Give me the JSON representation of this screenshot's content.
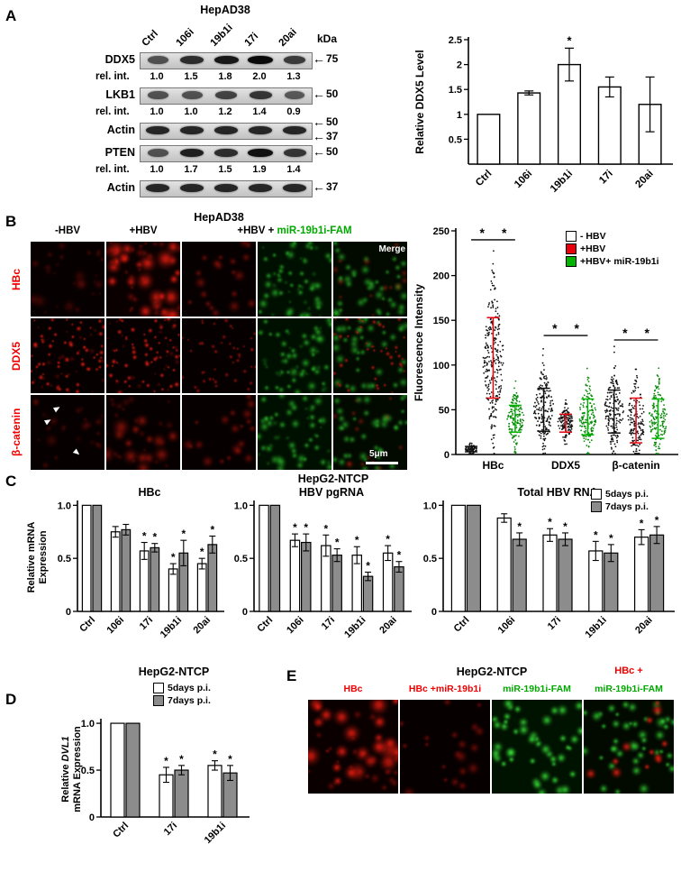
{
  "colors": {
    "red_text": "#f10000",
    "green_text": "#00a800",
    "chart_red": "#e8000b",
    "chart_green": "#00b400",
    "bar_gray": "#8c8c8c"
  },
  "panels": {
    "A": {
      "label": "A",
      "title": "HepAD38",
      "kda": "kDa",
      "lanes": [
        "Ctrl",
        "106i",
        "19b1i",
        "17i",
        "20ai"
      ],
      "rel_int_label": "rel. int.",
      "blots": [
        {
          "protein": "DDX5",
          "markers": [
            "75"
          ],
          "rel_int": [
            "1.0",
            "1.5",
            "1.8",
            "2.0",
            "1.3"
          ],
          "intensities": [
            1.0,
            1.5,
            1.8,
            2.0,
            1.3
          ]
        },
        {
          "protein": "LKB1",
          "markers": [
            "50"
          ],
          "rel_int": [
            "1.0",
            "1.0",
            "1.2",
            "1.4",
            "0.9"
          ],
          "intensities": [
            1.0,
            1.0,
            1.2,
            1.4,
            0.9
          ]
        },
        {
          "protein": "Actin",
          "markers": [
            "50",
            "37"
          ],
          "intensities": [
            1.6,
            1.6,
            1.6,
            1.6,
            1.6
          ]
        },
        {
          "protein": "PTEN",
          "markers": [
            "50"
          ],
          "rel_int": [
            "1.0",
            "1.7",
            "1.5",
            "1.9",
            "1.4"
          ],
          "intensities": [
            1.0,
            1.7,
            1.5,
            1.9,
            1.4
          ]
        },
        {
          "protein": "Actin",
          "markers": [
            "37"
          ],
          "intensities": [
            1.6,
            1.6,
            1.6,
            1.6,
            1.6
          ]
        }
      ]
    },
    "B": {
      "label": "B",
      "title": "HepAD38",
      "col_header_1": "-HBV",
      "col_header_2": "+HBV",
      "col_header_3_black": "+HBV + ",
      "col_header_3_green": "miR-19b1i-FAM",
      "row_labels": [
        "HBc",
        "DDX5",
        "β-catenin"
      ],
      "merge_label": "Merge",
      "scale_label": "5μm",
      "cells": [
        {
          "name": "hbc-minus-hbv",
          "preset": "red-faint",
          "seed": 11
        },
        {
          "name": "hbc-plus-hbv",
          "preset": "red-bright",
          "seed": 12
        },
        {
          "name": "hbc-mir-red",
          "preset": "red-dim",
          "seed": 13
        },
        {
          "name": "hbc-mir-fam",
          "preset": "green",
          "seed": 14
        },
        {
          "name": "hbc-mir-merge",
          "preset": "merge-dim",
          "seed": 15
        },
        {
          "name": "ddx5-minus-hbv",
          "preset": "red-dots",
          "seed": 21
        },
        {
          "name": "ddx5-plus-hbv",
          "preset": "red-dots",
          "seed": 22
        },
        {
          "name": "ddx5-mir-red",
          "preset": "red-dots-dim",
          "seed": 23
        },
        {
          "name": "ddx5-mir-fam",
          "preset": "green",
          "seed": 24
        },
        {
          "name": "ddx5-mir-merge",
          "preset": "merge-dots",
          "seed": 25
        },
        {
          "name": "bcatenin-minus-hbv",
          "preset": "red-faint",
          "seed": 31
        },
        {
          "name": "bcatenin-plus-hbv",
          "preset": "red-patch",
          "seed": 32
        },
        {
          "name": "bcatenin-mir-red",
          "preset": "red-dim",
          "seed": 33
        },
        {
          "name": "bcatenin-mir-fam",
          "preset": "green",
          "seed": 34
        },
        {
          "name": "bcatenin-mir-merge",
          "preset": "merge-dim",
          "seed": 35
        }
      ]
    },
    "C": {
      "label": "C",
      "title": "HepG2-NTCP"
    },
    "D": {
      "label": "D",
      "title": "HepG2-NTCP"
    },
    "E": {
      "label": "E",
      "title": "HepG2-NTCP",
      "header_extra": "HBc +",
      "col_labels": [
        "HBc",
        "HBc +miR-19b1i",
        "miR-19b1i-FAM",
        "miR-19b1i-FAM"
      ],
      "cells": [
        {
          "name": "hbc",
          "preset": "red-bright",
          "seed": 41
        },
        {
          "name": "hbc-mir19b1",
          "preset": "red-dim",
          "seed": 42
        },
        {
          "name": "mir-19b1i-fam",
          "preset": "green-bright",
          "seed": 43
        },
        {
          "name": "hbc-mir-fam-merge",
          "preset": "merge-bright",
          "seed": 44
        }
      ]
    }
  },
  "chart_data": [
    {
      "id": "panelA_ddx5_level",
      "type": "bar",
      "ylabel": "Relative DDX5 Level",
      "categories": [
        "Ctrl",
        "106i",
        "19b1i",
        "17i",
        "20ai"
      ],
      "values": [
        1.0,
        1.43,
        2.0,
        1.55,
        1.2
      ],
      "errors": [
        0,
        0.04,
        0.33,
        0.2,
        0.55
      ],
      "sig": [
        "",
        "",
        "*",
        "",
        ""
      ],
      "ylim": [
        0,
        2.5
      ],
      "yticks": [
        0.5,
        1,
        1.5,
        2,
        2.5
      ],
      "ytick_labels": [
        "0.5",
        "1",
        "1.5",
        "2",
        "2.5"
      ],
      "bar_fill": "#ffffff"
    },
    {
      "id": "panelB_fluorescence",
      "type": "scatter",
      "ylabel": "Fluorescence Intensity",
      "ylim": [
        0,
        250
      ],
      "yticks": [
        0,
        50,
        100,
        150,
        200,
        250
      ],
      "ytick_labels": [
        "0",
        "50",
        "100",
        "150",
        "200",
        "250"
      ],
      "groups": [
        "HBc",
        "DDX5",
        "β-catenin"
      ],
      "legend": [
        {
          "label": "- HBV",
          "color": "#ffffff"
        },
        {
          "label": "+HBV",
          "color": "#e8000b"
        },
        {
          "label": "+HBV+ miR-19b1i",
          "color": "#00b400"
        }
      ],
      "clusters": [
        {
          "group": 0,
          "series": 0,
          "mean": 6,
          "sd": 3,
          "n": 70,
          "dot": "#111111",
          "whisker": "#111111"
        },
        {
          "group": 0,
          "series": 1,
          "mean": 108,
          "sd": 45,
          "n": 260,
          "dot": "#111111",
          "whisker": "#e8000b"
        },
        {
          "group": 0,
          "series": 2,
          "mean": 40,
          "sd": 15,
          "n": 150,
          "dot": "#0a8a0a",
          "whisker": "#00b400"
        },
        {
          "group": 1,
          "series": 0,
          "mean": 50,
          "sd": 24,
          "n": 180,
          "dot": "#111111",
          "whisker": "#111111"
        },
        {
          "group": 1,
          "series": 1,
          "mean": 35,
          "sd": 10,
          "n": 130,
          "dot": "#111111",
          "whisker": "#e8000b"
        },
        {
          "group": 1,
          "series": 2,
          "mean": 42,
          "sd": 20,
          "n": 150,
          "dot": "#0a8a0a",
          "whisker": "#00b400"
        },
        {
          "group": 2,
          "series": 0,
          "mean": 48,
          "sd": 24,
          "n": 170,
          "dot": "#111111",
          "whisker": "#111111"
        },
        {
          "group": 2,
          "series": 1,
          "mean": 38,
          "sd": 25,
          "n": 150,
          "dot": "#111111",
          "whisker": "#e8000b"
        },
        {
          "group": 2,
          "series": 2,
          "mean": 40,
          "sd": 22,
          "n": 150,
          "dot": "#0a8a0a",
          "whisker": "#00b400"
        }
      ],
      "sig": [
        {
          "group": 0,
          "pair": [
            0,
            1
          ],
          "y": 240,
          "label": "*"
        },
        {
          "group": 0,
          "pair": [
            1,
            2
          ],
          "y": 240,
          "label": "*"
        },
        {
          "group": 1,
          "pair": [
            0,
            1
          ],
          "y": 133,
          "label": "*"
        },
        {
          "group": 1,
          "pair": [
            1,
            2
          ],
          "y": 133,
          "label": "*"
        },
        {
          "group": 2,
          "pair": [
            0,
            1
          ],
          "y": 128,
          "label": "*"
        },
        {
          "group": 2,
          "pair": [
            1,
            2
          ],
          "y": 128,
          "label": "*"
        }
      ]
    },
    {
      "id": "panelC_HBc",
      "type": "grouped-bar",
      "title": "HBc",
      "ylabel_lines": [
        [
          {
            "t": "Relative mRNA"
          }
        ],
        [
          {
            "t": "Expression"
          }
        ]
      ],
      "categories": [
        "Ctrl",
        "106i",
        "17i",
        "19b1i",
        "20ai"
      ],
      "series": [
        {
          "name": "5days p.i.",
          "fill": "#ffffff",
          "values": [
            1.0,
            0.75,
            0.57,
            0.4,
            0.45
          ],
          "errors": [
            0,
            0.05,
            0.08,
            0.05,
            0.05
          ],
          "sig": [
            "",
            "",
            "*",
            "*",
            "*"
          ]
        },
        {
          "name": "7days p.i.",
          "fill": "#8c8c8c",
          "values": [
            1.0,
            0.77,
            0.6,
            0.55,
            0.63
          ],
          "errors": [
            0,
            0.05,
            0.04,
            0.12,
            0.08
          ],
          "sig": [
            "",
            "",
            "*",
            "*",
            "*"
          ]
        }
      ],
      "ylim": [
        0,
        1.02
      ],
      "yticks": [
        0,
        0.5,
        1
      ],
      "ytick_labels": [
        "0",
        "0.5",
        "1.0"
      ]
    },
    {
      "id": "panelC_pgRNA",
      "type": "grouped-bar",
      "title": "HBV pgRNA",
      "categories": [
        "Ctrl",
        "106i",
        "17i",
        "19b1i",
        "20ai"
      ],
      "series": [
        {
          "name": "5days p.i.",
          "fill": "#ffffff",
          "values": [
            1.0,
            0.67,
            0.62,
            0.53,
            0.55
          ],
          "errors": [
            0,
            0.06,
            0.1,
            0.08,
            0.07
          ],
          "sig": [
            "",
            "*",
            "*",
            "*",
            "*"
          ]
        },
        {
          "name": "7days p.i.",
          "fill": "#8c8c8c",
          "values": [
            1.0,
            0.65,
            0.53,
            0.33,
            0.42
          ],
          "errors": [
            0,
            0.08,
            0.06,
            0.04,
            0.05
          ],
          "sig": [
            "",
            "*",
            "*",
            "*",
            "*"
          ]
        }
      ],
      "ylim": [
        0,
        1.02
      ],
      "yticks": [
        0,
        0.5,
        1
      ],
      "ytick_labels": [
        "0",
        "0.5",
        "1.0"
      ]
    },
    {
      "id": "panelC_totalRNA",
      "type": "grouped-bar",
      "title": "Total HBV RNA",
      "categories": [
        "Ctrl",
        "106i",
        "17i",
        "19b1i",
        "20ai"
      ],
      "series": [
        {
          "name": "5days p.i.",
          "fill": "#ffffff",
          "values": [
            1.0,
            0.88,
            0.72,
            0.57,
            0.7
          ],
          "errors": [
            0,
            0.04,
            0.06,
            0.09,
            0.07
          ],
          "sig": [
            "",
            "",
            "*",
            "*",
            "*"
          ]
        },
        {
          "name": "7days p.i.",
          "fill": "#8c8c8c",
          "values": [
            1.0,
            0.68,
            0.68,
            0.55,
            0.72
          ],
          "errors": [
            0,
            0.06,
            0.06,
            0.08,
            0.08
          ],
          "sig": [
            "",
            "*",
            "*",
            "*",
            "*"
          ]
        }
      ],
      "ylim": [
        0,
        1.02
      ],
      "yticks": [
        0,
        0.5,
        1
      ],
      "ytick_labels": [
        "0",
        "0.5",
        "1.0"
      ]
    },
    {
      "id": "panelD_DVL1",
      "type": "grouped-bar",
      "ylabel_lines": [
        [
          {
            "t": "Relative "
          },
          {
            "t": "DVL1",
            "i": 1
          }
        ],
        [
          {
            "t": "mRNA Expression"
          }
        ]
      ],
      "categories": [
        "Ctrl",
        "17i",
        "19b1i"
      ],
      "series": [
        {
          "name": "5days p.i.",
          "fill": "#ffffff",
          "values": [
            1.0,
            0.45,
            0.55
          ],
          "errors": [
            0,
            0.08,
            0.05
          ],
          "sig": [
            "",
            "*",
            "*"
          ]
        },
        {
          "name": "7days p.i.",
          "fill": "#8c8c8c",
          "values": [
            1.0,
            0.5,
            0.47
          ],
          "errors": [
            0,
            0.05,
            0.08
          ],
          "sig": [
            "",
            "*",
            "*"
          ]
        }
      ],
      "ylim": [
        0,
        1.02
      ],
      "yticks": [
        0,
        0.5,
        1
      ],
      "ytick_labels": [
        "0",
        "0.5",
        "1.0"
      ]
    }
  ]
}
